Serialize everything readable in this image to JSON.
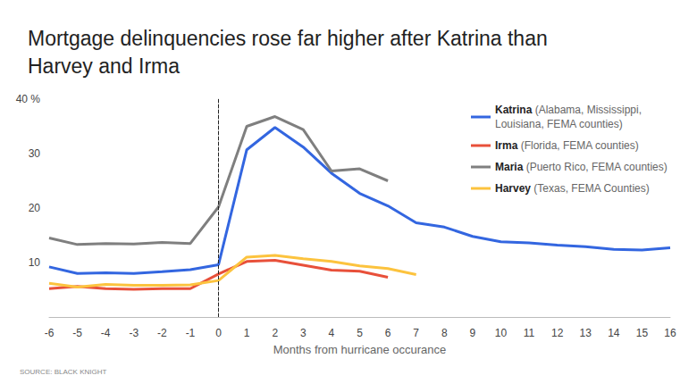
{
  "chart_data": {
    "type": "line",
    "title": "Mortgage delinquencies rose far higher after Katrina than Harvey and Irma",
    "x_label": "Months from hurricane occurance",
    "source": "SOURCE: BLACK KNIGHT",
    "x": [
      -6,
      -5,
      -4,
      -3,
      -2,
      -1,
      0,
      1,
      2,
      3,
      4,
      5,
      6,
      7,
      8,
      9,
      10,
      11,
      12,
      13,
      14,
      15,
      16
    ],
    "series": [
      {
        "name": "Katrina (Alabama, Mississippi, Louisiana, FEMA counties)",
        "color": "#3366e0",
        "values": [
          9.2,
          8.0,
          8.1,
          8.0,
          8.3,
          8.7,
          9.6,
          30.7,
          34.8,
          31.2,
          26.4,
          22.7,
          20.4,
          17.3,
          16.5,
          14.8,
          13.8,
          13.6,
          13.2,
          12.9,
          12.4,
          12.3,
          12.7
        ]
      },
      {
        "name": "Irma (Florida, FEMA counties)",
        "color": "#e8503a",
        "values": [
          5.2,
          5.6,
          5.2,
          5.1,
          5.2,
          5.2,
          7.9,
          10.2,
          10.4,
          9.5,
          8.6,
          8.4,
          7.3,
          null,
          null,
          null,
          null,
          null,
          null,
          null,
          null,
          null,
          null
        ]
      },
      {
        "name": "Maria (Puerto Rico, FEMA counties)",
        "color": "#7f7f7f",
        "values": [
          14.5,
          13.3,
          13.5,
          13.4,
          13.7,
          13.5,
          20.2,
          35.0,
          36.8,
          34.4,
          26.8,
          27.2,
          25.0,
          null,
          null,
          null,
          null,
          null,
          null,
          null,
          null,
          null,
          null
        ]
      },
      {
        "name": "Harvey (Texas, FEMA Counties)",
        "color": "#fcc33e",
        "values": [
          6.2,
          5.5,
          6.0,
          5.8,
          5.8,
          5.9,
          6.7,
          11.0,
          11.3,
          10.7,
          10.2,
          9.4,
          8.9,
          7.8,
          null,
          null,
          null,
          null,
          null,
          null,
          null,
          null,
          null
        ]
      }
    ],
    "xlim": [
      -6,
      16
    ],
    "xticks": [
      -6,
      -5,
      -4,
      -3,
      -2,
      -1,
      0,
      1,
      2,
      3,
      4,
      5,
      6,
      7,
      8,
      9,
      10,
      11,
      12,
      13,
      14,
      15,
      16
    ],
    "ylim": [
      0,
      40
    ],
    "yticks": [
      10,
      20,
      30,
      {
        "value": 40,
        "label": "40 %"
      }
    ],
    "reference_line_x": 0,
    "grid": false,
    "legend": "upper right"
  }
}
